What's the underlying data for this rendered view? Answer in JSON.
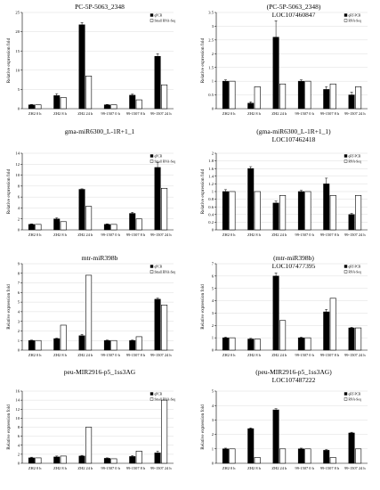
{
  "page": {
    "background": "#ffffff"
  },
  "colors": {
    "qpcr": "#000000",
    "seq": "#ffffff",
    "axis": "#000000",
    "gridline": "#dcdcdc"
  },
  "chart_data": [
    {
      "type": "bar",
      "title_lines": [
        "PC-5P-5063_2348"
      ],
      "ylabel": "Relative expression fold",
      "ylim": [
        0,
        25
      ],
      "yticks": [
        0,
        5,
        10,
        15,
        20,
        25
      ],
      "grid": true,
      "legend": "top-right",
      "categories": [
        "ZH2 0 h",
        "ZH2 8 h",
        "ZH2 24 h",
        "99-1507 0 h",
        "99-1507 8 h",
        "99-1507 24 h"
      ],
      "series": [
        {
          "name": "qPCR",
          "values": [
            1.0,
            3.4,
            21.8,
            1.0,
            3.5,
            13.6
          ],
          "errors": [
            0.1,
            0.5,
            0.6,
            0.1,
            0.3,
            0.7
          ]
        },
        {
          "name": "Small RNA-Seq",
          "values": [
            1.0,
            2.9,
            8.5,
            1.0,
            2.3,
            6.2
          ]
        }
      ]
    },
    {
      "type": "bar",
      "title_lines": [
        "(PC-5P-5063_2348)",
        "LOC107460847"
      ],
      "ylabel": "Relative expression fold",
      "ylim": [
        0,
        3.5
      ],
      "yticks": [
        0,
        0.5,
        1,
        1.5,
        2,
        2.5,
        3,
        3.5
      ],
      "grid": true,
      "legend": "top-right",
      "categories": [
        "ZH2 0 h",
        "ZH2 8 h",
        "ZH2 24 h",
        "99-1507 0 h",
        "99-1507 8 h",
        "99-1507 24 h"
      ],
      "series": [
        {
          "name": "qRT-PCR",
          "values": [
            1.0,
            0.2,
            2.6,
            1.0,
            0.7,
            0.5
          ],
          "errors": [
            0.05,
            0.05,
            0.6,
            0.05,
            0.1,
            0.1
          ]
        },
        {
          "name": "RNA-Seq",
          "values": [
            1.0,
            0.8,
            0.9,
            1.0,
            0.9,
            0.8
          ]
        }
      ]
    },
    {
      "type": "bar",
      "title_lines": [
        "gma-miR6300_L-1R+1_1"
      ],
      "ylabel": "Relative expression fold",
      "ylim": [
        0,
        14
      ],
      "yticks": [
        0,
        2,
        4,
        6,
        8,
        10,
        12,
        14
      ],
      "grid": true,
      "legend": "top-right",
      "categories": [
        "ZH2 0 h",
        "ZH2 8 h",
        "ZH2 24 h",
        "99-1507 0 h",
        "99-1507 8 h",
        "99-1507 24 h"
      ],
      "series": [
        {
          "name": "qPCR",
          "values": [
            1.0,
            2.0,
            7.4,
            1.0,
            3.0,
            11.4
          ],
          "errors": [
            0.1,
            0.2,
            0.1,
            0.1,
            0.2,
            0.9
          ]
        },
        {
          "name": "Small RNA-Seq",
          "values": [
            1.0,
            1.5,
            4.3,
            1.0,
            2.0,
            7.6
          ]
        }
      ]
    },
    {
      "type": "bar",
      "title_lines": [
        "(gma-miR6300_L-1R+1_1)",
        "LOC107462418"
      ],
      "ylabel": "Relative expression fold",
      "ylim": [
        0,
        2
      ],
      "yticks": [
        0,
        0.2,
        0.4,
        0.6,
        0.8,
        1,
        1.2,
        1.4,
        1.6,
        1.8,
        2
      ],
      "grid": true,
      "legend": "top-right",
      "categories": [
        "ZH2 0 h",
        "ZH2 8 h",
        "ZH2 24 h",
        "99-1507 0 h",
        "99-1507 8 h",
        "99-1507 24 h"
      ],
      "series": [
        {
          "name": "qRT-PCR",
          "values": [
            1.0,
            1.6,
            0.7,
            1.0,
            1.2,
            0.4
          ],
          "errors": [
            0.05,
            0.05,
            0.05,
            0.03,
            0.15,
            0.03
          ]
        },
        {
          "name": "RNA-Seq",
          "values": [
            1.0,
            1.0,
            0.9,
            1.0,
            0.9,
            0.9
          ]
        }
      ]
    },
    {
      "type": "bar",
      "title_lines": [
        "mtr-miR398b"
      ],
      "ylabel": "Relative expression fold",
      "ylim": [
        0,
        9
      ],
      "yticks": [
        0,
        1,
        2,
        3,
        4,
        5,
        6,
        7,
        8,
        9
      ],
      "grid": true,
      "legend": "top-right",
      "categories": [
        "ZH2 0 h",
        "ZH2 8 h",
        "ZH2 24 h",
        "99-1507 0 h",
        "99-1507 8 h",
        "99-1507 24 h"
      ],
      "series": [
        {
          "name": "qPCR",
          "values": [
            1.0,
            1.2,
            1.5,
            1.0,
            1.0,
            5.3
          ],
          "errors": [
            0.05,
            0.05,
            0.15,
            0.05,
            0.05,
            0.12
          ]
        },
        {
          "name": "Small RNA-Seq",
          "values": [
            1.0,
            2.6,
            7.8,
            1.0,
            1.4,
            4.7
          ]
        }
      ]
    },
    {
      "type": "bar",
      "title_lines": [
        "(mtr-miR398b)",
        "LOC107477395"
      ],
      "ylabel": "Relative expression fold",
      "ylim": [
        0,
        7
      ],
      "yticks": [
        0,
        1,
        2,
        3,
        4,
        5,
        6,
        7
      ],
      "grid": true,
      "legend": "top-right",
      "categories": [
        "ZH2 0 h",
        "ZH2 8 h",
        "ZH2 24 h",
        "99-1507 0 h",
        "99-1507 8 h",
        "99-1507 24 h"
      ],
      "series": [
        {
          "name": "qRT-PCR",
          "values": [
            1.0,
            0.9,
            6.0,
            1.0,
            3.1,
            1.8
          ],
          "errors": [
            0.05,
            0.05,
            0.25,
            0.05,
            0.2,
            0.05
          ]
        },
        {
          "name": "RNA-Seq",
          "values": [
            1.0,
            0.9,
            2.4,
            1.0,
            4.2,
            1.8
          ]
        }
      ]
    },
    {
      "type": "bar",
      "title_lines": [
        "peu-MIR2916-p5_1ss3AG"
      ],
      "ylabel": "Relative expression fold",
      "ylim": [
        0,
        16
      ],
      "yticks": [
        0,
        2,
        4,
        6,
        8,
        10,
        12,
        14,
        16
      ],
      "grid": true,
      "legend": "top-right",
      "categories": [
        "ZH2 0 h",
        "ZH2 8 h",
        "ZH2 24 h",
        "99-1507 0 h",
        "99-1507 8 h",
        "99-1507 24 h"
      ],
      "series": [
        {
          "name": "qPCR",
          "values": [
            1.2,
            1.4,
            1.6,
            1.1,
            1.5,
            2.3
          ],
          "errors": [
            0.15,
            0.2,
            0.15,
            0.1,
            0.2,
            0.4
          ]
        },
        {
          "name": "Small RNA-Seq",
          "values": [
            1.2,
            1.6,
            8.0,
            1.0,
            2.7,
            14.0
          ]
        }
      ]
    },
    {
      "type": "bar",
      "title_lines": [
        "(peu-MIR2916-p5_1ss3AG)",
        "LOC107487222"
      ],
      "ylabel": "Relative expression fold",
      "ylim": [
        0,
        5
      ],
      "yticks": [
        0,
        1,
        2,
        3,
        4,
        5
      ],
      "grid": true,
      "legend": "top-right",
      "categories": [
        "ZH2 0 h",
        "ZH2 8 h",
        "ZH2 24 h",
        "99-1507 0 h",
        "99-1507 8 h",
        "99-1507 24 h"
      ],
      "series": [
        {
          "name": "qRT-PCR",
          "values": [
            1.0,
            2.4,
            3.7,
            1.0,
            0.9,
            2.1
          ],
          "errors": [
            0.05,
            0.05,
            0.08,
            0.05,
            0.05,
            0.05
          ]
        },
        {
          "name": "RNA-Seq",
          "values": [
            1.0,
            0.4,
            1.0,
            1.0,
            0.4,
            1.0
          ]
        }
      ]
    }
  ]
}
